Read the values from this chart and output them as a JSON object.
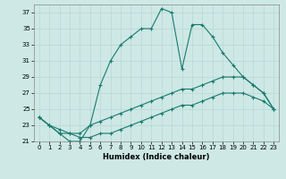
{
  "xlabel": "Humidex (Indice chaleur)",
  "xlim": [
    -0.5,
    23.5
  ],
  "ylim": [
    21,
    38
  ],
  "yticks": [
    21,
    23,
    25,
    27,
    29,
    31,
    33,
    35,
    37
  ],
  "xticks": [
    0,
    1,
    2,
    3,
    4,
    5,
    6,
    7,
    8,
    9,
    10,
    11,
    12,
    13,
    14,
    15,
    16,
    17,
    18,
    19,
    20,
    21,
    22,
    23
  ],
  "bg_color": "#cde8e5",
  "line_color": "#1a7a6e",
  "grid_color": "#b8d8d4",
  "line1_x": [
    0,
    1,
    2,
    3,
    4,
    5,
    6,
    7,
    8,
    9,
    10,
    11,
    12,
    13,
    14,
    15,
    16,
    17,
    18,
    19,
    20,
    21,
    22,
    23
  ],
  "line1_y": [
    24.0,
    23.0,
    22.0,
    21.0,
    21.0,
    23.0,
    28.0,
    31.0,
    33.0,
    34.0,
    35.0,
    35.0,
    37.5,
    37.0,
    30.0,
    35.5,
    35.5,
    34.0,
    32.0,
    30.5,
    29.0,
    28.0,
    27.0,
    25.0
  ],
  "line2_x": [
    0,
    1,
    2,
    3,
    4,
    5,
    6,
    7,
    8,
    9,
    10,
    11,
    12,
    13,
    14,
    15,
    16,
    17,
    18,
    19,
    20,
    21,
    22,
    23
  ],
  "line2_y": [
    24.0,
    23.0,
    22.5,
    22.0,
    22.0,
    23.0,
    23.5,
    24.0,
    24.5,
    25.0,
    25.5,
    26.0,
    26.5,
    27.0,
    27.5,
    27.5,
    28.0,
    28.5,
    29.0,
    29.0,
    29.0,
    28.0,
    27.0,
    25.0
  ],
  "line3_x": [
    0,
    1,
    2,
    3,
    4,
    5,
    6,
    7,
    8,
    9,
    10,
    11,
    12,
    13,
    14,
    15,
    16,
    17,
    18,
    19,
    20,
    21,
    22,
    23
  ],
  "line3_y": [
    24.0,
    23.0,
    22.0,
    22.0,
    21.5,
    21.5,
    22.0,
    22.0,
    22.5,
    23.0,
    23.5,
    24.0,
    24.5,
    25.0,
    25.5,
    25.5,
    26.0,
    26.5,
    27.0,
    27.0,
    27.0,
    26.5,
    26.0,
    25.0
  ]
}
